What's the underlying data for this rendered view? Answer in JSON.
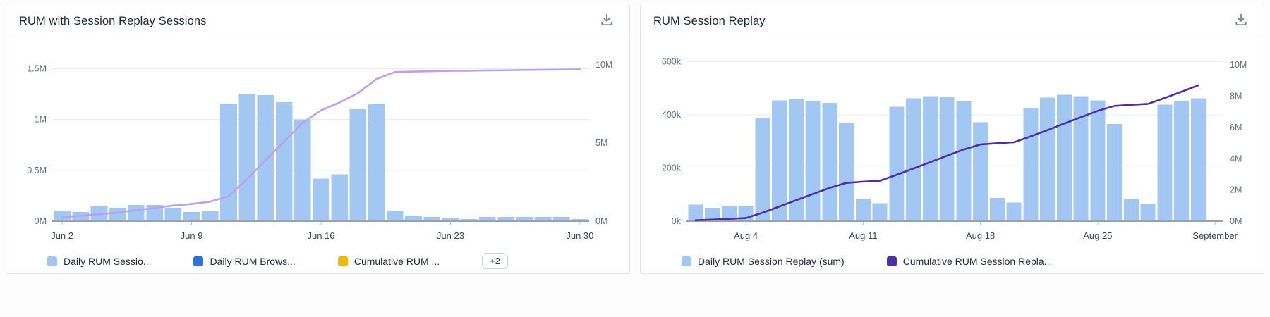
{
  "widgets": [
    {
      "title": "RUM with Session Replay Sessions",
      "download_icon": "download-icon",
      "legend": [
        {
          "label": "Daily RUM Sessio...",
          "color": "#a2c7f2"
        },
        {
          "label": "Daily RUM Brows...",
          "color": "#2e71d8"
        },
        {
          "label": "Cumulative RUM ...",
          "color": "#eabb0e"
        }
      ],
      "legend_overflow": "+2"
    },
    {
      "title": "RUM Session Replay",
      "download_icon": "download-icon",
      "legend": [
        {
          "label": "Daily RUM Session Replay (sum)",
          "color": "#a2c7f2"
        },
        {
          "label": "Cumulative RUM Session Repla...",
          "color": "#4b2fa6"
        }
      ],
      "legend_overflow": null
    }
  ],
  "chart_data": [
    {
      "type": "bar+line",
      "title": "RUM with Session Replay Sessions",
      "slots": 29,
      "x_ticks": [
        {
          "i": 0,
          "label": "Jun 2"
        },
        {
          "i": 7,
          "label": "Jun 9"
        },
        {
          "i": 14,
          "label": "Jun 16"
        },
        {
          "i": 21,
          "label": "Jun 23"
        },
        {
          "i": 28,
          "label": "Jun 30"
        }
      ],
      "left_axis": {
        "max": 1.62,
        "unit": "M",
        "ticks": [
          {
            "v": 0,
            "label": "0M"
          },
          {
            "v": 0.5,
            "label": "0.5M"
          },
          {
            "v": 1,
            "label": "1M"
          },
          {
            "v": 1.5,
            "label": "1.5M"
          }
        ]
      },
      "right_axis": {
        "max": 10.55,
        "unit": "M",
        "ticks": [
          {
            "v": 0,
            "label": "0M"
          },
          {
            "v": 5,
            "label": "5M"
          },
          {
            "v": 10,
            "label": "10M"
          }
        ]
      },
      "bars": {
        "name": "Daily RUM Sessions (sum)",
        "color": "#a2c7f2",
        "unit": "M",
        "values": [
          0.1,
          0.09,
          0.15,
          0.13,
          0.16,
          0.16,
          0.13,
          0.09,
          0.1,
          1.15,
          1.25,
          1.24,
          1.17,
          1.0,
          0.42,
          0.46,
          1.1,
          1.15,
          0.1,
          0.05,
          0.04,
          0.03,
          0.02,
          0.04,
          0.04,
          0.04,
          0.04,
          0.04,
          0.02
        ]
      },
      "line": {
        "name": "Cumulative RUM Sessions",
        "color": "#b9a1ef",
        "unit": "M",
        "values": [
          0.25,
          0.35,
          0.45,
          0.55,
          0.7,
          0.85,
          1.0,
          1.1,
          1.25,
          1.6,
          2.7,
          3.9,
          5.1,
          6.3,
          7.1,
          7.6,
          8.2,
          9.1,
          9.55,
          9.58,
          9.6,
          9.62,
          9.63,
          9.65,
          9.66,
          9.68,
          9.69,
          9.7,
          9.72
        ]
      }
    },
    {
      "type": "bar+line",
      "title": "RUM Session Replay",
      "slots": 32,
      "x_ticks": [
        {
          "i": 3,
          "label": "Aug 4"
        },
        {
          "i": 10,
          "label": "Aug 11"
        },
        {
          "i": 17,
          "label": "Aug 18"
        },
        {
          "i": 24,
          "label": "Aug 25"
        },
        {
          "i": 31,
          "label": "September"
        }
      ],
      "left_axis": {
        "max": 620,
        "unit": "k",
        "ticks": [
          {
            "v": 0,
            "label": "0k"
          },
          {
            "v": 200,
            "label": "200k"
          },
          {
            "v": 400,
            "label": "400k"
          },
          {
            "v": 600,
            "label": "600k"
          }
        ]
      },
      "right_axis": {
        "max": 10.55,
        "unit": "M",
        "ticks": [
          {
            "v": 0,
            "label": "0M"
          },
          {
            "v": 2,
            "label": "2M"
          },
          {
            "v": 4,
            "label": "4M"
          },
          {
            "v": 6,
            "label": "6M"
          },
          {
            "v": 8,
            "label": "8M"
          },
          {
            "v": 10,
            "label": "10M"
          }
        ]
      },
      "bars": {
        "name": "Daily RUM Session Replay (sum)",
        "color": "#a2c7f2",
        "unit": "k",
        "values": [
          62,
          50,
          58,
          55,
          390,
          455,
          460,
          452,
          445,
          370,
          85,
          68,
          430,
          462,
          470,
          468,
          450,
          372,
          88,
          70,
          425,
          465,
          475,
          470,
          455,
          365,
          85,
          65,
          438,
          452,
          462
        ]
      },
      "line": {
        "name": "Cumulative RUM Session Replay",
        "color": "#4b2fa6",
        "unit": "M",
        "values": [
          0.06,
          0.1,
          0.15,
          0.2,
          0.54,
          0.94,
          1.34,
          1.74,
          2.13,
          2.45,
          2.53,
          2.59,
          2.97,
          3.37,
          3.78,
          4.19,
          4.59,
          4.91,
          4.99,
          5.05,
          5.43,
          5.83,
          6.25,
          6.66,
          7.06,
          7.38,
          7.45,
          7.51,
          7.89,
          8.29,
          8.7
        ]
      }
    }
  ]
}
